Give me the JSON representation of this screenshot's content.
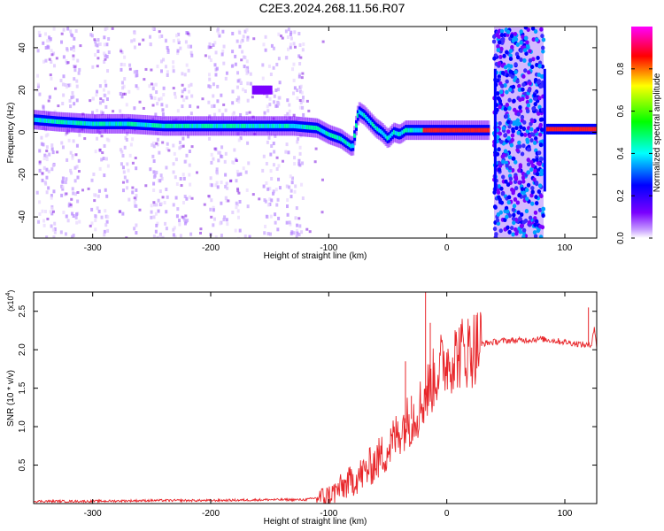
{
  "title": "C2E3.2024.268.11.56.R07",
  "colorbar": {
    "label": "Normalized spectral amplitude",
    "ticks": [
      "0.0",
      "0.2",
      "0.4",
      "0.6",
      "0.8"
    ],
    "tick_values": [
      0.0,
      0.2,
      0.4,
      0.6,
      0.8
    ],
    "range": [
      0,
      1
    ],
    "colormap": [
      "#ffffff",
      "#7a00ff",
      "#0000ff",
      "#00ffff",
      "#00ff00",
      "#ffff00",
      "#ff0000",
      "#ff00ff"
    ]
  },
  "chart_data": [
    {
      "type": "heatmap",
      "name": "spectrogram",
      "xlabel": "Height of straight line (km)",
      "ylabel": "Frequency (Hz)",
      "xlim": [
        -350,
        127
      ],
      "ylim": [
        -50,
        50
      ],
      "xticks": [
        -300,
        -200,
        -100,
        0,
        100
      ],
      "xtick_labels": [
        "-300",
        "-200",
        "-100",
        "0",
        "100"
      ],
      "yticks": [
        -40,
        -20,
        0,
        20,
        40
      ],
      "ytick_labels": [
        "-40",
        "-20",
        "0",
        "20",
        "40"
      ],
      "main_trace": {
        "x": [
          -350,
          -330,
          -300,
          -270,
          -240,
          -210,
          -180,
          -150,
          -130,
          -110,
          -100,
          -90,
          -80,
          -75,
          -70,
          -65,
          -60,
          -55,
          -50,
          -45,
          -40,
          -35,
          -30,
          -20,
          -10,
          0,
          10,
          20,
          36
        ],
        "y": [
          6,
          5,
          4,
          4,
          3,
          3,
          3,
          3,
          3,
          2,
          -1,
          -3,
          -7,
          10,
          8,
          5,
          2,
          0,
          -3,
          0,
          -1,
          1,
          1,
          1,
          1,
          1,
          1,
          1,
          1
        ]
      },
      "gap_region": {
        "x": [
          40,
          82
        ],
        "description": "broadband noise"
      },
      "right_trace": {
        "x": [
          85,
          127
        ],
        "y": [
          1.5,
          1.5
        ]
      },
      "isolated_patch": {
        "x": [
          -165,
          -150
        ],
        "y": [
          20,
          20
        ]
      }
    },
    {
      "type": "line",
      "name": "snr",
      "xlabel": "Height of straight line (km)",
      "ylabel": "SNR (10 * v/v)",
      "scale_label": "(x10",
      "scale_exponent": "4",
      "scale_suffix": ")",
      "xlim": [
        -350,
        127
      ],
      "ylim": [
        0,
        2.75
      ],
      "xticks": [
        -300,
        -200,
        -100,
        0,
        100
      ],
      "xtick_labels": [
        "-300",
        "-200",
        "-100",
        "0",
        "100"
      ],
      "yticks": [
        0.5,
        1.0,
        1.5,
        2.0,
        2.5
      ],
      "ytick_labels": [
        "0.5",
        "1.0",
        "1.5",
        "2.0",
        "2.5"
      ],
      "color": "#e8262a",
      "x": [
        -350,
        -300,
        -250,
        -200,
        -150,
        -120,
        -100,
        -95,
        -90,
        -80,
        -70,
        -60,
        -50,
        -40,
        -35,
        -30,
        -25,
        -20,
        -15,
        -10,
        -5,
        0,
        5,
        10,
        15,
        20,
        25,
        30,
        40,
        50,
        60,
        70,
        80,
        90,
        100,
        110,
        118,
        122,
        125,
        127
      ],
      "y": [
        0.03,
        0.03,
        0.04,
        0.04,
        0.05,
        0.05,
        0.1,
        0.15,
        0.2,
        0.3,
        0.4,
        0.55,
        0.7,
        0.95,
        1.05,
        1.1,
        1.2,
        1.35,
        1.5,
        1.65,
        1.8,
        1.85,
        1.9,
        1.95,
        1.98,
        2.0,
        2.05,
        2.08,
        2.1,
        2.12,
        2.12,
        2.13,
        2.14,
        2.12,
        2.1,
        2.08,
        2.06,
        2.05,
        2.3,
        2.0
      ],
      "spikes": [
        {
          "x": -35,
          "y": 1.85
        },
        {
          "x": -30,
          "y": 1.4
        },
        {
          "x": -18,
          "y": 2.75
        },
        {
          "x": -14,
          "y": 2.35
        },
        {
          "x": 120,
          "y": 2.55
        }
      ]
    }
  ]
}
